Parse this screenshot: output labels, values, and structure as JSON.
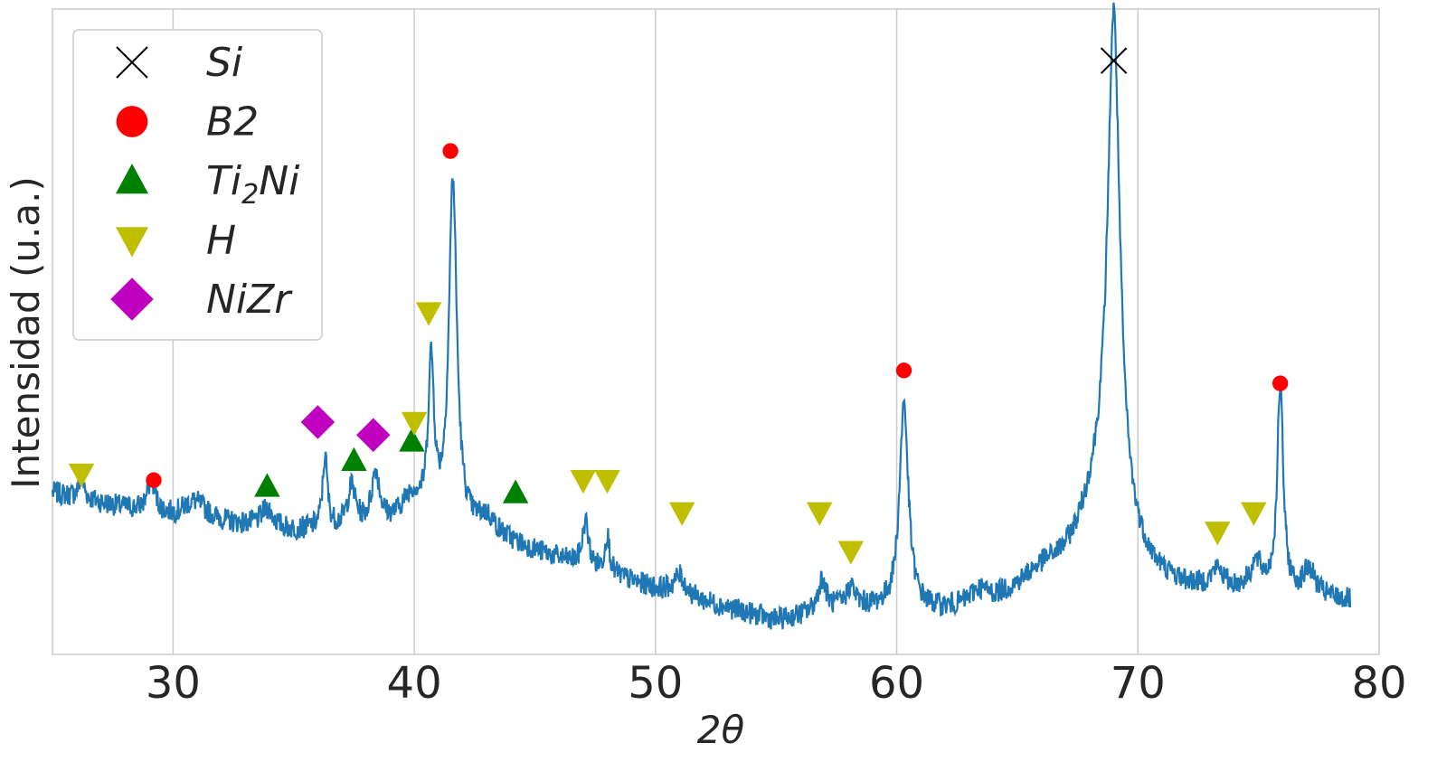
{
  "chart_data": {
    "type": "line",
    "xlabel": "2θ",
    "ylabel": "Intensidad (u.a.)",
    "xlim": [
      25,
      80
    ],
    "ylim": [
      0,
      1
    ],
    "xticks": [
      30,
      40,
      50,
      60,
      70,
      80
    ],
    "yticks": [],
    "grid": true,
    "grid_axis": "x",
    "legend_position": "top-left",
    "series": [
      {
        "color": "#1f77b4",
        "peaks": [
          {
            "x": 26.2,
            "h": 0.03,
            "w": 0.15
          },
          {
            "x": 29.1,
            "h": 0.05,
            "w": 0.2
          },
          {
            "x": 30.9,
            "h": 0.03,
            "w": 0.6
          },
          {
            "x": 33.9,
            "h": 0.03,
            "w": 0.3
          },
          {
            "x": 36.3,
            "h": 0.11,
            "w": 0.12
          },
          {
            "x": 37.4,
            "h": 0.06,
            "w": 0.2
          },
          {
            "x": 38.4,
            "h": 0.08,
            "w": 0.2
          },
          {
            "x": 39.9,
            "h": 0.04,
            "w": 0.5
          },
          {
            "x": 40.7,
            "h": 0.24,
            "w": 0.15
          },
          {
            "x": 41.6,
            "h": 0.54,
            "w": 0.2
          },
          {
            "x": 43.0,
            "h": 0.03,
            "w": 0.5
          },
          {
            "x": 47.1,
            "h": 0.07,
            "w": 0.15
          },
          {
            "x": 48.0,
            "h": 0.06,
            "w": 0.12
          },
          {
            "x": 51.0,
            "h": 0.03,
            "w": 0.3
          },
          {
            "x": 56.9,
            "h": 0.05,
            "w": 0.2
          },
          {
            "x": 58.1,
            "h": 0.03,
            "w": 0.2
          },
          {
            "x": 60.3,
            "h": 0.32,
            "w": 0.22
          },
          {
            "x": 63.4,
            "h": 0.02,
            "w": 0.4
          },
          {
            "x": 66.0,
            "h": 0.03,
            "w": 1.2
          },
          {
            "x": 69.0,
            "h": 0.76,
            "w": 0.3
          },
          {
            "x": 68.6,
            "h": 0.17,
            "w": 1.3
          },
          {
            "x": 73.3,
            "h": 0.03,
            "w": 0.3
          },
          {
            "x": 74.9,
            "h": 0.04,
            "w": 0.3
          },
          {
            "x": 75.9,
            "h": 0.32,
            "w": 0.15
          },
          {
            "x": 77.1,
            "h": 0.04,
            "w": 0.3
          }
        ],
        "baseline": [
          [
            25.0,
            0.25
          ],
          [
            30.0,
            0.21
          ],
          [
            35.0,
            0.19
          ],
          [
            40.0,
            0.2
          ],
          [
            44.0,
            0.17
          ],
          [
            50.0,
            0.1
          ],
          [
            55.0,
            0.05
          ],
          [
            58.0,
            0.07
          ],
          [
            62.0,
            0.06
          ],
          [
            65.0,
            0.07
          ],
          [
            70.0,
            0.08
          ],
          [
            75.0,
            0.09
          ],
          [
            78.8,
            0.08
          ]
        ],
        "x_range": [
          25.0,
          78.8
        ]
      }
    ],
    "markers": [
      {
        "phase": "Si",
        "x": 69.0,
        "y": 0.92
      },
      {
        "phase": "B2",
        "x": 29.2,
        "y": 0.27
      },
      {
        "phase": "B2",
        "x": 41.5,
        "y": 0.78
      },
      {
        "phase": "B2",
        "x": 60.3,
        "y": 0.44
      },
      {
        "phase": "B2",
        "x": 75.9,
        "y": 0.42
      },
      {
        "phase": "Ti2Ni",
        "x": 33.9,
        "y": 0.26
      },
      {
        "phase": "Ti2Ni",
        "x": 37.5,
        "y": 0.3
      },
      {
        "phase": "Ti2Ni",
        "x": 39.9,
        "y": 0.33
      },
      {
        "phase": "Ti2Ni",
        "x": 44.2,
        "y": 0.25
      },
      {
        "phase": "H",
        "x": 26.2,
        "y": 0.28
      },
      {
        "phase": "H",
        "x": 40.0,
        "y": 0.36
      },
      {
        "phase": "H",
        "x": 40.6,
        "y": 0.53
      },
      {
        "phase": "H",
        "x": 47.0,
        "y": 0.27
      },
      {
        "phase": "H",
        "x": 48.0,
        "y": 0.27
      },
      {
        "phase": "H",
        "x": 51.1,
        "y": 0.22
      },
      {
        "phase": "H",
        "x": 56.8,
        "y": 0.22
      },
      {
        "phase": "H",
        "x": 58.1,
        "y": 0.16
      },
      {
        "phase": "H",
        "x": 73.3,
        "y": 0.19
      },
      {
        "phase": "H",
        "x": 74.8,
        "y": 0.22
      },
      {
        "phase": "NiZr",
        "x": 36.0,
        "y": 0.36
      },
      {
        "phase": "NiZr",
        "x": 38.3,
        "y": 0.34
      }
    ]
  },
  "legend": {
    "items": [
      {
        "label_main": "Si",
        "label_sub": "",
        "label_tail": "",
        "marker": "x-icon",
        "color": "#000000"
      },
      {
        "label_main": "B2",
        "label_sub": "",
        "label_tail": "",
        "marker": "circle-icon",
        "color": "#ff0000"
      },
      {
        "label_main": "Ti",
        "label_sub": "2",
        "label_tail": "Ni",
        "marker": "triangle-up-icon",
        "color": "#008000"
      },
      {
        "label_main": "H",
        "label_sub": "",
        "label_tail": "",
        "marker": "triangle-down-icon",
        "color": "#bfbf00"
      },
      {
        "label_main": "NiZr",
        "label_sub": "",
        "label_tail": "",
        "marker": "diamond-icon",
        "color": "#bf00bf"
      }
    ]
  }
}
